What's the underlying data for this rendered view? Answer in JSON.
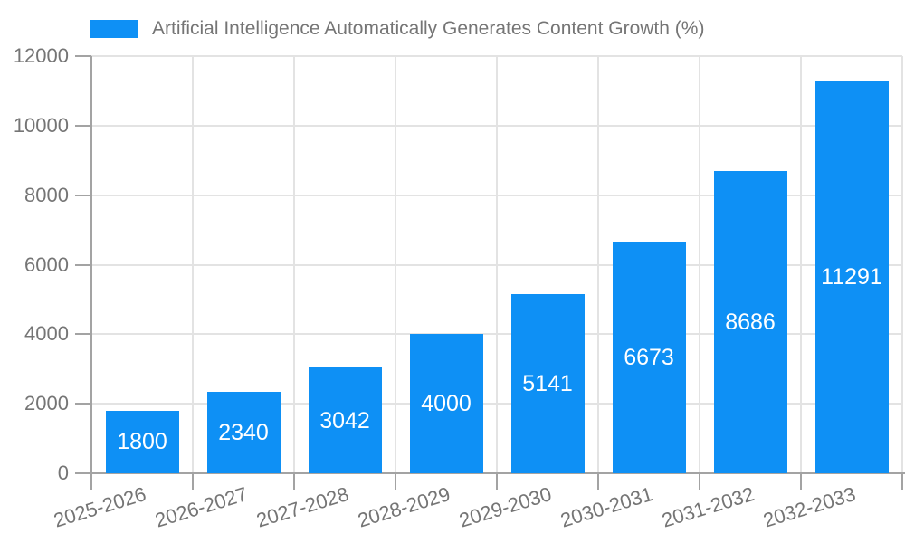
{
  "chart_data": {
    "type": "bar",
    "title": "Artificial Intelligence Automatically Generates Content Growth (%)",
    "categories": [
      "2025-2026",
      "2026-2027",
      "2027-2028",
      "2028-2029",
      "2029-2030",
      "2030-2031",
      "2031-2032",
      "2032-2033"
    ],
    "values": [
      1800,
      2340,
      3042,
      4000,
      5141,
      6673,
      8686,
      11291
    ],
    "xlabel": "",
    "ylabel": "",
    "ylim": [
      0,
      12000
    ],
    "yticks": [
      0,
      2000,
      4000,
      6000,
      8000,
      10000,
      12000
    ],
    "grid": true,
    "legend_position": "top",
    "colors": {
      "bar": "#0e90f5",
      "value_label": "#ffffff",
      "axis_line": "#a3a3a3",
      "grid_line": "#e3e3e3",
      "tick_text": "#757575",
      "background": "#ffffff"
    }
  }
}
